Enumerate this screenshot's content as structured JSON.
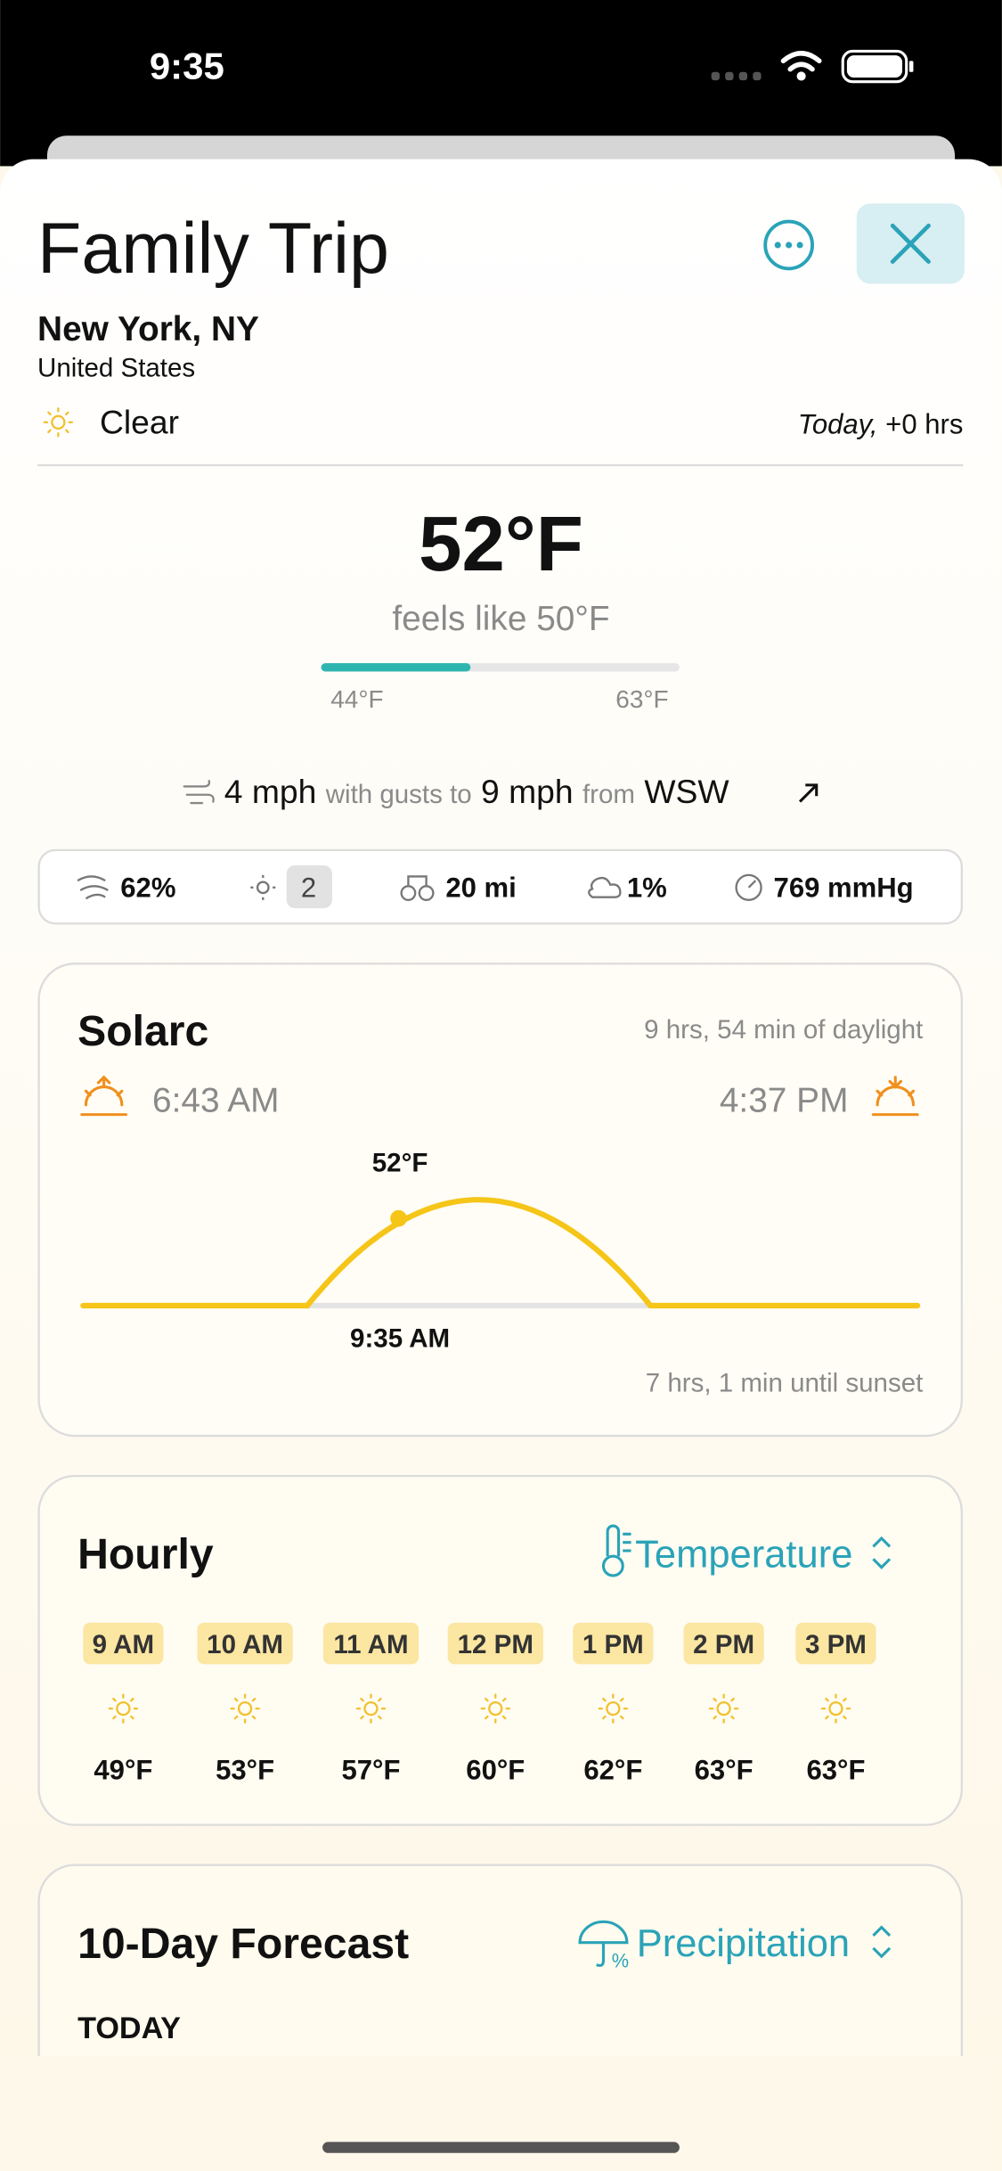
{
  "status_bar": {
    "time": "9:35"
  },
  "header": {
    "title": "Family Trip",
    "location": "New York, NY",
    "country": "United States",
    "condition": "Clear",
    "date_label": "Today,",
    "offset": "+0 hrs"
  },
  "current": {
    "temperature": "52°F",
    "feels_like": "feels like 50°F",
    "low": "44°F",
    "high": "63°F"
  },
  "wind": {
    "speed": "4 mph",
    "gusts_label": "with gusts to",
    "gusts": "9 mph",
    "from_label": "from",
    "direction": "WSW"
  },
  "stats": [
    "62%",
    "2",
    "20 mi",
    "1%",
    "769 mmHg"
  ],
  "solarc": {
    "title": "Solarc",
    "daylight": "9 hrs, 54 min of daylight",
    "sunrise": "6:43 AM",
    "sunset": "4:37 PM",
    "current_temp": "52°F",
    "current_time": "9:35 AM",
    "until_sunset": "7 hrs, 1 min until sunset"
  },
  "hourly": {
    "title": "Hourly",
    "selector": "Temperature",
    "hours": [
      {
        "time": "9 AM",
        "temp": "49°F"
      },
      {
        "time": "10 AM",
        "temp": "53°F"
      },
      {
        "time": "11 AM",
        "temp": "57°F"
      },
      {
        "time": "12 PM",
        "temp": "60°F"
      },
      {
        "time": "1 PM",
        "temp": "62°F"
      },
      {
        "time": "2 PM",
        "temp": "63°F"
      },
      {
        "time": "3 PM",
        "temp": "63°F"
      }
    ]
  },
  "forecast": {
    "title": "10-Day Forecast",
    "selector": "Precipitation",
    "first_day": "TODAY"
  }
}
